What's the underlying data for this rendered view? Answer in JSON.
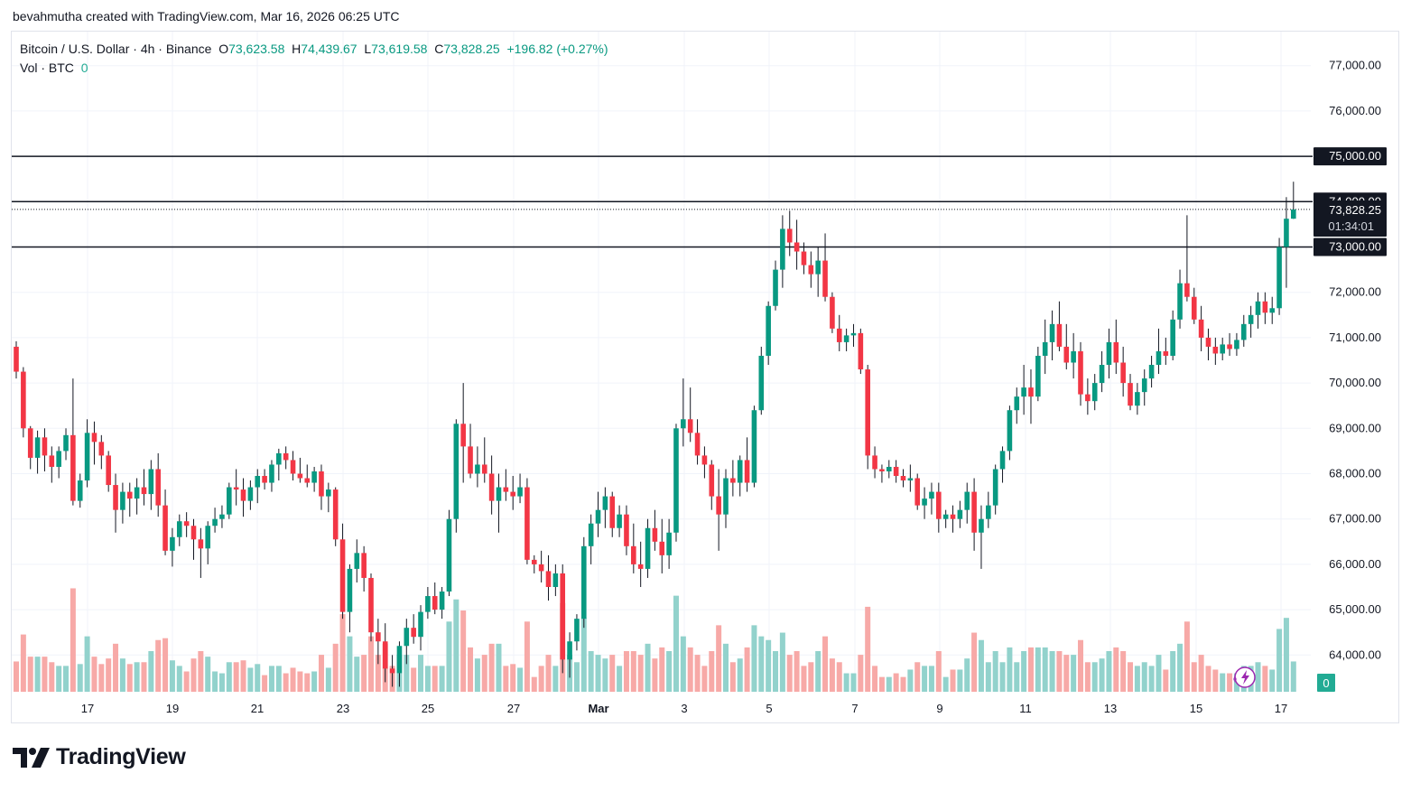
{
  "header": {
    "credit": "bevahmutha created with TradingView.com, Mar 16, 2026 06:25 UTC"
  },
  "legend": {
    "symbol": "Bitcoin / U.S. Dollar · 4h · Binance",
    "o_label": "O",
    "o_value": "73,623.58",
    "h_label": "H",
    "h_value": "74,439.67",
    "l_label": "L",
    "l_value": "73,619.58",
    "c_label": "C",
    "c_value": "73,828.25",
    "change": "+196.82 (+0.27%)",
    "vol_label": "Vol · BTC",
    "vol_value": "0"
  },
  "price_scale": {
    "ticks": [
      "77,000.00",
      "76,000.00",
      "75,000.00",
      "74,000.00",
      "73,000.00",
      "72,000.00",
      "71,000.00",
      "70,000.00",
      "69,000.00",
      "68,000.00",
      "67,000.00",
      "66,000.00",
      "65,000.00",
      "64,000.00"
    ],
    "horizontal_line_labels": [
      "75,000.00",
      "74,000.00",
      "73,000.00"
    ],
    "last_price_label": "73,828.25",
    "countdown": "01:34:01",
    "volume_label": "0"
  },
  "time_scale": {
    "labels": [
      "17",
      "19",
      "21",
      "23",
      "25",
      "27",
      "Mar",
      "3",
      "5",
      "7",
      "9",
      "11",
      "13",
      "15",
      "17"
    ]
  },
  "footer": {
    "brand": "TradingView"
  },
  "colors": {
    "up": "#089981",
    "down": "#f23645",
    "vol_up": "#92d2cc",
    "vol_down": "#f7a9a7",
    "accent": "#2962ff",
    "line": "#131722"
  },
  "chart_data": {
    "type": "candlestick",
    "title": "Bitcoin / U.S. Dollar · 4h · Binance",
    "interval": "4h",
    "ylim": [
      63200,
      77700
    ],
    "horizontal_lines": [
      75000,
      74000,
      73000
    ],
    "last_price": 73828.25,
    "x_range": [
      "Feb 15",
      "Mar 17"
    ],
    "candles_per_day": 6,
    "grid": true,
    "volume_panel": true,
    "candles": [
      [
        70800,
        70920,
        70100,
        70250
      ],
      [
        70250,
        70350,
        68800,
        69000
      ],
      [
        69000,
        69050,
        68100,
        68350
      ],
      [
        68350,
        68950,
        68000,
        68800
      ],
      [
        68800,
        69000,
        68050,
        68400
      ],
      [
        68400,
        68600,
        67800,
        68150
      ],
      [
        68150,
        68600,
        67900,
        68500
      ],
      [
        68500,
        69000,
        68300,
        68850
      ],
      [
        68850,
        70100,
        67300,
        67400
      ],
      [
        67400,
        68000,
        67250,
        67850
      ],
      [
        67850,
        69200,
        67700,
        68900
      ],
      [
        68900,
        69150,
        68200,
        68700
      ],
      [
        68700,
        68850,
        68100,
        68400
      ],
      [
        68400,
        68500,
        67600,
        67750
      ],
      [
        67750,
        68000,
        66700,
        67200
      ],
      [
        67200,
        67800,
        66900,
        67600
      ],
      [
        67600,
        67800,
        67050,
        67450
      ],
      [
        67450,
        67900,
        67100,
        67700
      ],
      [
        67700,
        68100,
        67300,
        67550
      ],
      [
        67550,
        68300,
        67200,
        68100
      ],
      [
        68100,
        68450,
        67050,
        67300
      ],
      [
        67300,
        67650,
        66200,
        66300
      ],
      [
        66300,
        66800,
        65950,
        66600
      ],
      [
        66600,
        67100,
        66400,
        66950
      ],
      [
        66950,
        67150,
        66600,
        66850
      ],
      [
        66850,
        67000,
        66100,
        66550
      ],
      [
        66550,
        66800,
        65700,
        66350
      ],
      [
        66350,
        66950,
        66000,
        66850
      ],
      [
        66850,
        67250,
        66700,
        67000
      ],
      [
        67000,
        67300,
        66800,
        67100
      ],
      [
        67100,
        67800,
        67000,
        67700
      ],
      [
        67700,
        68100,
        67300,
        67650
      ],
      [
        67650,
        67900,
        67050,
        67400
      ],
      [
        67400,
        67850,
        67200,
        67700
      ],
      [
        67700,
        68100,
        67350,
        67950
      ],
      [
        67950,
        68100,
        67650,
        67800
      ],
      [
        67800,
        68300,
        67600,
        68200
      ],
      [
        68200,
        68550,
        67850,
        68450
      ],
      [
        68450,
        68600,
        68100,
        68300
      ],
      [
        68300,
        68500,
        67850,
        68000
      ],
      [
        68000,
        68350,
        67800,
        67900
      ],
      [
        67900,
        68200,
        67700,
        67800
      ],
      [
        67800,
        68150,
        67600,
        68050
      ],
      [
        68050,
        68200,
        67200,
        67500
      ],
      [
        67500,
        67800,
        67150,
        67650
      ],
      [
        67650,
        67700,
        66400,
        66550
      ],
      [
        66550,
        66900,
        64800,
        64950
      ],
      [
        64950,
        66000,
        64500,
        65900
      ],
      [
        65900,
        66550,
        65600,
        66250
      ],
      [
        66250,
        66400,
        65400,
        65700
      ],
      [
        65700,
        65800,
        64300,
        64500
      ],
      [
        64500,
        64800,
        63800,
        64300
      ],
      [
        64300,
        64700,
        63400,
        63700
      ],
      [
        63700,
        64000,
        63300,
        63600
      ],
      [
        63600,
        64300,
        63300,
        64200
      ],
      [
        64200,
        64800,
        63800,
        64600
      ],
      [
        64600,
        64900,
        64250,
        64400
      ],
      [
        64400,
        65100,
        64100,
        64950
      ],
      [
        64950,
        65500,
        64800,
        65300
      ],
      [
        65300,
        65600,
        64900,
        65000
      ],
      [
        65000,
        65500,
        64800,
        65400
      ],
      [
        65400,
        67200,
        65300,
        67000
      ],
      [
        67000,
        69200,
        66700,
        69100
      ],
      [
        69100,
        70000,
        67800,
        68600
      ],
      [
        68600,
        69100,
        67900,
        68000
      ],
      [
        68000,
        68600,
        67700,
        68200
      ],
      [
        68200,
        68800,
        67800,
        68000
      ],
      [
        68000,
        68400,
        67100,
        67400
      ],
      [
        67400,
        68000,
        66700,
        67700
      ],
      [
        67700,
        68100,
        67400,
        67600
      ],
      [
        67600,
        67950,
        67200,
        67500
      ],
      [
        67500,
        68000,
        67350,
        67700
      ],
      [
        67700,
        67900,
        66000,
        66100
      ],
      [
        66100,
        66200,
        65800,
        66000
      ],
      [
        66000,
        66300,
        65600,
        65850
      ],
      [
        65850,
        66200,
        65200,
        65500
      ],
      [
        65500,
        66000,
        65300,
        65800
      ],
      [
        65800,
        66000,
        63600,
        63900
      ],
      [
        63900,
        64500,
        63500,
        64300
      ],
      [
        64300,
        64900,
        64100,
        64800
      ],
      [
        64800,
        66600,
        64600,
        66400
      ],
      [
        66400,
        67100,
        66000,
        66900
      ],
      [
        66900,
        67600,
        66600,
        67200
      ],
      [
        67200,
        67700,
        66800,
        67500
      ],
      [
        67500,
        67600,
        66600,
        66800
      ],
      [
        66800,
        67300,
        66600,
        67100
      ],
      [
        67100,
        67300,
        66200,
        66400
      ],
      [
        66400,
        66900,
        65800,
        66000
      ],
      [
        66000,
        66500,
        65500,
        65900
      ],
      [
        65900,
        67000,
        65700,
        66800
      ],
      [
        66800,
        67200,
        66300,
        66500
      ],
      [
        66500,
        67000,
        65800,
        66200
      ],
      [
        66200,
        67000,
        65900,
        66700
      ],
      [
        66700,
        69100,
        66500,
        69000
      ],
      [
        69000,
        70100,
        68600,
        69200
      ],
      [
        69200,
        69900,
        68700,
        68900
      ],
      [
        68900,
        69200,
        68200,
        68400
      ],
      [
        68400,
        68600,
        67900,
        68200
      ],
      [
        68200,
        68300,
        67200,
        67500
      ],
      [
        67500,
        68100,
        66300,
        67100
      ],
      [
        67100,
        68100,
        66800,
        67900
      ],
      [
        67900,
        68300,
        67500,
        67800
      ],
      [
        67800,
        68400,
        67500,
        68300
      ],
      [
        68300,
        68800,
        67600,
        67800
      ],
      [
        67800,
        69500,
        67700,
        69400
      ],
      [
        69400,
        70800,
        69300,
        70600
      ],
      [
        70600,
        71800,
        70400,
        71700
      ],
      [
        71700,
        72700,
        71600,
        72500
      ],
      [
        72500,
        73700,
        72100,
        73400
      ],
      [
        73400,
        73800,
        72800,
        73100
      ],
      [
        73100,
        73600,
        72500,
        72900
      ],
      [
        72900,
        73100,
        72400,
        72600
      ],
      [
        72600,
        72900,
        72100,
        72400
      ],
      [
        72400,
        73000,
        71900,
        72700
      ],
      [
        72700,
        73300,
        71800,
        71900
      ],
      [
        71900,
        72000,
        71100,
        71200
      ],
      [
        71200,
        71500,
        70700,
        70900
      ],
      [
        70900,
        71200,
        70700,
        71050
      ],
      [
        71050,
        71300,
        70800,
        71100
      ],
      [
        71100,
        71200,
        70200,
        70300
      ],
      [
        70300,
        70400,
        68100,
        68400
      ],
      [
        68400,
        68600,
        67900,
        68100
      ],
      [
        68100,
        68200,
        67800,
        68050
      ],
      [
        68050,
        68300,
        67900,
        68150
      ],
      [
        68150,
        68300,
        67800,
        67950
      ],
      [
        67950,
        68100,
        67700,
        67850
      ],
      [
        67850,
        68200,
        67600,
        67900
      ],
      [
        67900,
        68000,
        67200,
        67300
      ],
      [
        67300,
        67700,
        67000,
        67450
      ],
      [
        67450,
        67800,
        67100,
        67600
      ],
      [
        67600,
        67800,
        66700,
        67000
      ],
      [
        67000,
        67200,
        66800,
        67100
      ],
      [
        67100,
        67300,
        66700,
        67000
      ],
      [
        67000,
        67400,
        66800,
        67200
      ],
      [
        67200,
        67800,
        66900,
        67600
      ],
      [
        67600,
        67900,
        66300,
        66700
      ],
      [
        66700,
        67300,
        65900,
        67000
      ],
      [
        67000,
        67600,
        66800,
        67300
      ],
      [
        67300,
        68200,
        67100,
        68100
      ],
      [
        68100,
        68600,
        67800,
        68500
      ],
      [
        68500,
        69500,
        68300,
        69400
      ],
      [
        69400,
        69900,
        69100,
        69700
      ],
      [
        69700,
        70400,
        69300,
        69900
      ],
      [
        69900,
        70300,
        69100,
        69700
      ],
      [
        69700,
        70800,
        69600,
        70600
      ],
      [
        70600,
        71400,
        70200,
        70900
      ],
      [
        70900,
        71600,
        70500,
        71300
      ],
      [
        71300,
        71800,
        70700,
        70800
      ],
      [
        70800,
        71300,
        70300,
        70450
      ],
      [
        70450,
        71100,
        70100,
        70700
      ],
      [
        70700,
        70900,
        69500,
        69750
      ],
      [
        69750,
        70100,
        69300,
        69600
      ],
      [
        69600,
        70200,
        69400,
        70000
      ],
      [
        70000,
        70700,
        69800,
        70400
      ],
      [
        70400,
        71200,
        70100,
        70900
      ],
      [
        70900,
        71400,
        70200,
        70450
      ],
      [
        70450,
        70800,
        69700,
        70000
      ],
      [
        70000,
        70200,
        69400,
        69500
      ],
      [
        69500,
        70000,
        69300,
        69800
      ],
      [
        69800,
        70300,
        69500,
        70100
      ],
      [
        70100,
        70600,
        69900,
        70400
      ],
      [
        70400,
        71200,
        70200,
        70700
      ],
      [
        70700,
        71000,
        70400,
        70600
      ],
      [
        70600,
        71600,
        70500,
        71400
      ],
      [
        71400,
        72500,
        71200,
        72200
      ],
      [
        72200,
        73700,
        71800,
        71900
      ],
      [
        71900,
        72100,
        71300,
        71400
      ],
      [
        71400,
        71700,
        70700,
        71000
      ],
      [
        71000,
        71200,
        70500,
        70800
      ],
      [
        70800,
        71000,
        70400,
        70650
      ],
      [
        70650,
        71000,
        70500,
        70850
      ],
      [
        70850,
        71100,
        70600,
        70750
      ],
      [
        70750,
        71100,
        70600,
        70950
      ],
      [
        70950,
        71500,
        70800,
        71300
      ],
      [
        71300,
        71700,
        71000,
        71500
      ],
      [
        71500,
        72000,
        71200,
        71800
      ],
      [
        71800,
        72000,
        71300,
        71550
      ],
      [
        71550,
        71900,
        71300,
        71650
      ],
      [
        71650,
        73200,
        71500,
        73000
      ],
      [
        73000,
        74100,
        72100,
        73624
      ],
      [
        73624,
        74440,
        73620,
        73828
      ]
    ],
    "volume_note": "volume bars proportional, shown in lower pane"
  }
}
